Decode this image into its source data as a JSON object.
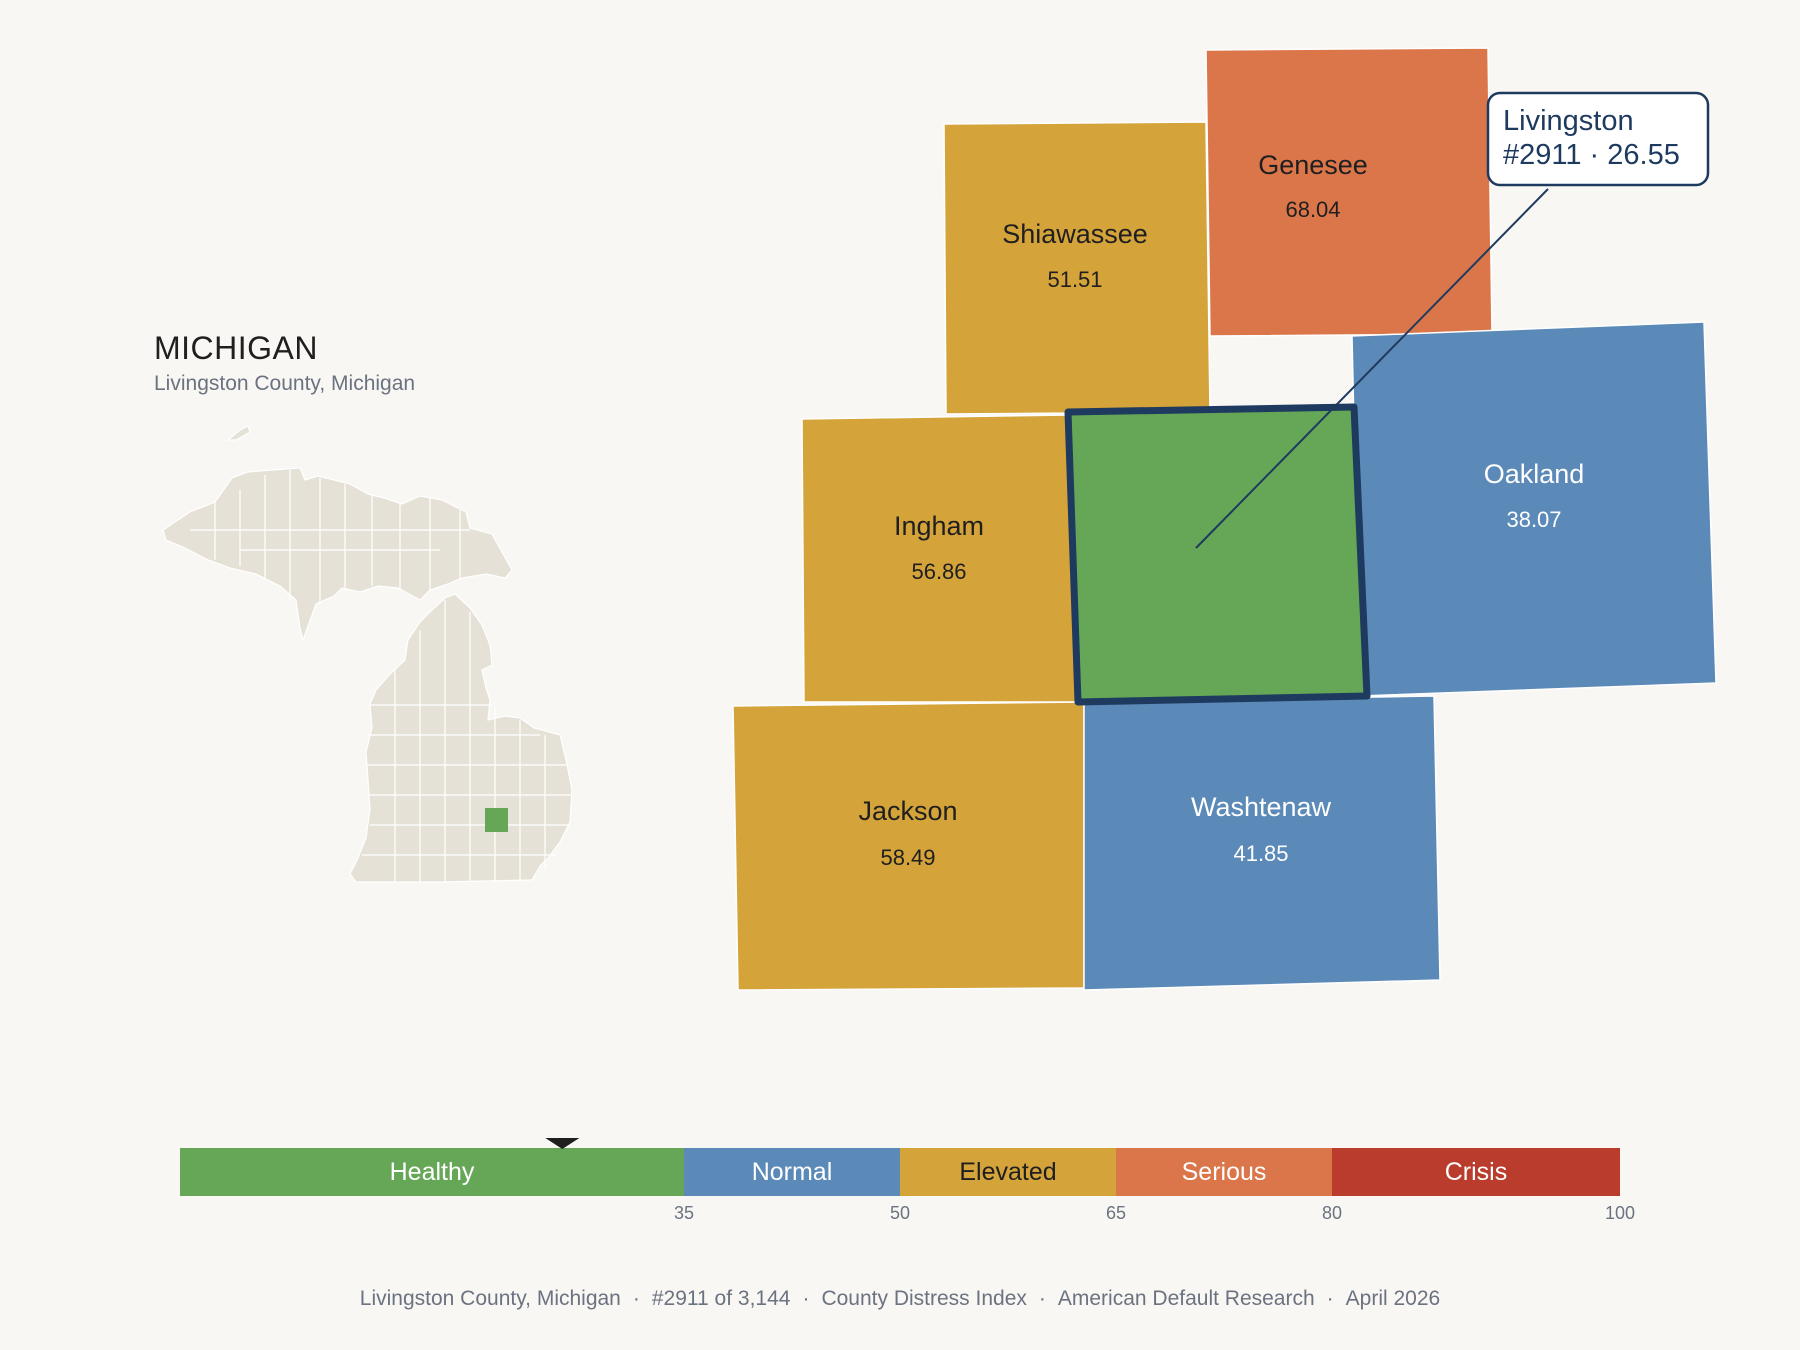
{
  "header": {
    "state_name": "MICHIGAN",
    "subtitle": "Livingston County, Michigan"
  },
  "map": {
    "selected_county": "Livingston",
    "counties": [
      {
        "id": "genesee",
        "name": "Genesee",
        "score": "68.04",
        "category": "Serious"
      },
      {
        "id": "shiawassee",
        "name": "Shiawassee",
        "score": "51.51",
        "category": "Elevated"
      },
      {
        "id": "ingham",
        "name": "Ingham",
        "score": "56.86",
        "category": "Elevated"
      },
      {
        "id": "livingston",
        "name": "Livingston",
        "score": "26.55",
        "category": "Healthy"
      },
      {
        "id": "oakland",
        "name": "Oakland",
        "score": "38.07",
        "category": "Normal"
      },
      {
        "id": "jackson",
        "name": "Jackson",
        "score": "58.49",
        "category": "Elevated"
      },
      {
        "id": "washtenaw",
        "name": "Washtenaw",
        "score": "41.85",
        "category": "Normal"
      }
    ],
    "callout": {
      "line1": "Livingston",
      "line2": "#2911 · 26.55"
    }
  },
  "legend": {
    "min": 0,
    "max": 100,
    "marker_value": 26.55,
    "bands": [
      {
        "label": "Healthy",
        "from": 0,
        "to": 35,
        "color": "#66a757"
      },
      {
        "label": "Normal",
        "from": 35,
        "to": 50,
        "color": "#5b89b8"
      },
      {
        "label": "Elevated",
        "from": 50,
        "to": 65,
        "color": "#d4a33a"
      },
      {
        "label": "Serious",
        "from": 65,
        "to": 80,
        "color": "#db764a"
      },
      {
        "label": "Crisis",
        "from": 80,
        "to": 100,
        "color": "#b93c2c"
      }
    ],
    "ticks": [
      "35",
      "50",
      "65",
      "80",
      "100"
    ]
  },
  "colors": {
    "healthy": "#66a757",
    "normal": "#5b89b8",
    "elevated": "#d4a33a",
    "serious": "#db764a",
    "crisis": "#b93c2c",
    "highlight_border": "#1e3a5f",
    "state_fill": "#e6e1d6"
  },
  "footer": {
    "county": "Livingston County, Michigan",
    "rank": "#2911 of 3,144",
    "index_name": "County Distress Index",
    "source": "American Default Research",
    "date": "April 2026"
  }
}
